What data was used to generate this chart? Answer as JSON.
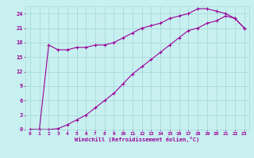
{
  "xlabel": "Windchill (Refroidissement éolien,°C)",
  "background_color": "#c8f0f0",
  "grid_color": "#a8dada",
  "line_color": "#990099",
  "xlim": [
    -0.5,
    23.5
  ],
  "ylim": [
    0,
    25.5
  ],
  "xticks": [
    0,
    1,
    2,
    3,
    4,
    5,
    6,
    7,
    8,
    9,
    10,
    11,
    12,
    13,
    14,
    15,
    16,
    17,
    18,
    19,
    20,
    21,
    22,
    23
  ],
  "yticks": [
    0,
    3,
    6,
    9,
    12,
    15,
    18,
    21,
    24
  ],
  "line1_x": [
    0,
    1,
    2,
    3,
    4,
    5,
    6,
    7,
    8,
    9,
    10,
    11,
    12,
    13,
    14,
    15,
    16,
    17,
    18,
    19,
    20,
    21,
    22,
    23
  ],
  "line1_y": [
    0,
    0,
    17.5,
    16.5,
    16.5,
    17,
    17,
    17.5,
    17.5,
    18,
    19,
    20,
    21,
    21.5,
    22,
    23,
    23.5,
    24,
    25,
    25,
    24.5,
    24,
    23,
    21
  ],
  "line2_x": [
    0,
    1,
    2,
    3,
    4,
    5,
    6,
    7,
    8,
    9,
    10,
    11,
    12,
    13,
    14,
    15,
    16,
    17,
    18,
    19,
    20,
    21,
    22,
    23
  ],
  "line2_y": [
    0,
    0,
    0,
    0.2,
    1,
    2,
    3,
    4.5,
    6,
    7.5,
    9.5,
    11.5,
    13,
    14.5,
    16,
    17.5,
    19,
    20.5,
    21,
    22,
    22.5,
    23.5,
    23,
    21
  ],
  "tick_fontsize": 4.5,
  "xlabel_fontsize": 5.0,
  "marker_size": 2.5,
  "line_width": 0.8
}
